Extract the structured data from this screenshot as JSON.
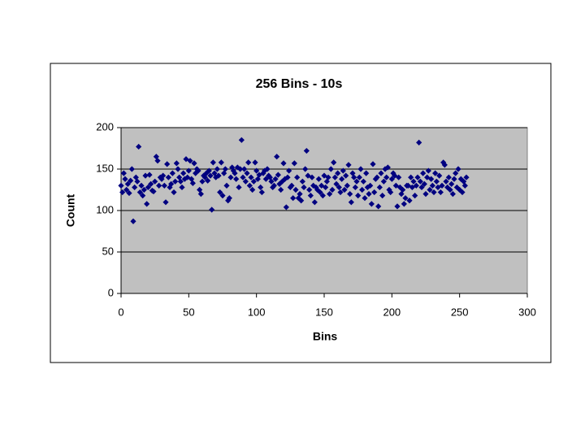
{
  "chart_data": {
    "type": "scatter",
    "title": "256 Bins - 10s",
    "x_label": "Bins",
    "y_label": "Count",
    "color": "#000080",
    "plot_background": "#c0c0c0",
    "grid": true,
    "xlim": [
      0,
      300
    ],
    "xticks": [
      0,
      50,
      100,
      150,
      200,
      250,
      300
    ],
    "ylim": [
      0,
      200
    ],
    "yticks": [
      0,
      50,
      100,
      150,
      200
    ],
    "x": [
      0,
      1,
      2,
      3,
      4,
      5,
      6,
      7,
      8,
      9,
      10,
      11,
      12,
      13,
      14,
      15,
      16,
      17,
      18,
      19,
      20,
      21,
      22,
      23,
      24,
      25,
      26,
      27,
      28,
      29,
      30,
      31,
      32,
      33,
      34,
      35,
      36,
      37,
      38,
      39,
      40,
      41,
      42,
      43,
      44,
      45,
      46,
      47,
      48,
      49,
      50,
      51,
      52,
      53,
      54,
      55,
      56,
      57,
      58,
      59,
      60,
      61,
      62,
      63,
      64,
      65,
      66,
      67,
      68,
      69,
      70,
      71,
      72,
      73,
      74,
      75,
      76,
      77,
      78,
      79,
      80,
      81,
      82,
      83,
      84,
      85,
      86,
      87,
      88,
      89,
      90,
      91,
      92,
      93,
      94,
      95,
      96,
      97,
      98,
      99,
      100,
      101,
      102,
      103,
      104,
      105,
      106,
      107,
      108,
      109,
      110,
      111,
      112,
      113,
      114,
      115,
      116,
      117,
      118,
      119,
      120,
      121,
      122,
      123,
      124,
      125,
      126,
      127,
      128,
      129,
      130,
      131,
      132,
      133,
      134,
      135,
      136,
      137,
      138,
      139,
      140,
      141,
      142,
      143,
      144,
      145,
      146,
      147,
      148,
      149,
      150,
      151,
      152,
      153,
      154,
      155,
      156,
      157,
      158,
      159,
      160,
      161,
      162,
      163,
      164,
      165,
      166,
      167,
      168,
      169,
      170,
      171,
      172,
      173,
      174,
      175,
      176,
      177,
      178,
      179,
      180,
      181,
      182,
      183,
      184,
      185,
      186,
      187,
      188,
      189,
      190,
      191,
      192,
      193,
      194,
      195,
      196,
      197,
      198,
      199,
      200,
      201,
      202,
      203,
      204,
      205,
      206,
      207,
      208,
      209,
      210,
      211,
      212,
      213,
      214,
      215,
      216,
      217,
      218,
      219,
      220,
      221,
      222,
      223,
      224,
      225,
      226,
      227,
      228,
      229,
      230,
      231,
      232,
      233,
      234,
      235,
      236,
      237,
      238,
      239,
      240,
      241,
      242,
      243,
      244,
      245,
      246,
      247,
      248,
      249,
      250,
      251,
      252,
      253,
      254,
      255
    ],
    "values": [
      130,
      122,
      145,
      138,
      125,
      132,
      121,
      136,
      150,
      87,
      128,
      140,
      135,
      177,
      122,
      130,
      118,
      125,
      142,
      108,
      128,
      143,
      132,
      124,
      123,
      135,
      165,
      160,
      130,
      140,
      138,
      142,
      130,
      110,
      156,
      140,
      128,
      132,
      145,
      122,
      135,
      157,
      150,
      140,
      135,
      128,
      145,
      138,
      162,
      140,
      148,
      160,
      138,
      133,
      157,
      145,
      150,
      148,
      125,
      120,
      135,
      142,
      140,
      145,
      136,
      148,
      142,
      101,
      158,
      145,
      140,
      150,
      142,
      122,
      158,
      118,
      145,
      150,
      130,
      112,
      115,
      140,
      152,
      148,
      145,
      138,
      152,
      128,
      150,
      185,
      140,
      150,
      135,
      145,
      158,
      130,
      140,
      125,
      135,
      158,
      148,
      138,
      143,
      128,
      122,
      145,
      148,
      138,
      150,
      142,
      140,
      135,
      128,
      130,
      138,
      165,
      143,
      132,
      125,
      135,
      157,
      138,
      104,
      140,
      148,
      128,
      130,
      115,
      157,
      125,
      140,
      115,
      120,
      112,
      135,
      128,
      150,
      172,
      142,
      125,
      118,
      140,
      130,
      110,
      128,
      125,
      138,
      122,
      130,
      118,
      142,
      128,
      135,
      140,
      120,
      150,
      125,
      158,
      140,
      132,
      145,
      128,
      122,
      138,
      148,
      125,
      142,
      130,
      155,
      120,
      110,
      145,
      140,
      128,
      135,
      118,
      140,
      150,
      125,
      135,
      115,
      145,
      128,
      120,
      130,
      108,
      156,
      122,
      138,
      140,
      105,
      128,
      145,
      118,
      135,
      150,
      140,
      152,
      125,
      122,
      138,
      145,
      142,
      130,
      105,
      140,
      128,
      120,
      125,
      108,
      115,
      130,
      130,
      112,
      140,
      128,
      135,
      118,
      130,
      140,
      182,
      135,
      128,
      145,
      132,
      120,
      140,
      148,
      125,
      138,
      130,
      122,
      145,
      135,
      128,
      142,
      122,
      130,
      158,
      155,
      135,
      128,
      140,
      125,
      132,
      120,
      138,
      145,
      128,
      150,
      125,
      138,
      122,
      135,
      130,
      140
    ]
  }
}
